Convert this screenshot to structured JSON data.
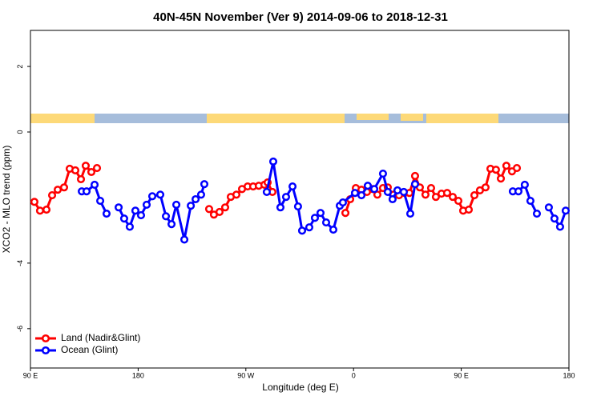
{
  "chart_data": {
    "type": "line",
    "title": "40N-45N November (Ver 9)   2014-09-06 to 2018-12-31",
    "x_label": "Longitude (deg E)",
    "y_label": "XCO2 - MLO trend (ppm)",
    "xlim": [
      90,
      540
    ],
    "ylim": [
      -7.2,
      3.1
    ],
    "xticks": [
      {
        "value": 90,
        "label": "90 E"
      },
      {
        "value": 180,
        "label": "180"
      },
      {
        "value": 270,
        "label": "90 W"
      },
      {
        "value": 360,
        "label": "0"
      },
      {
        "value": 450,
        "label": "90 E"
      },
      {
        "value": 540,
        "label": "180"
      }
    ],
    "yticks": [
      -6,
      -4,
      0,
      2
    ],
    "legend": "bottom-left",
    "series": [
      {
        "name": "Land (Nadir&Glint)",
        "color": "#ff0000",
        "x": [
          93.3,
          98.0,
          103.4,
          108.1,
          112.8,
          118.1,
          122.8,
          127.5,
          132.2,
          136.2,
          140.9,
          145.6,
          175.0,
          239.3,
          243.3,
          248.0,
          252.7,
          257.4,
          262.1,
          266.8,
          271.5,
          276.1,
          280.8,
          285.5,
          288.2,
          292.2,
          322.4,
          353.2,
          357.2,
          361.9,
          366.6,
          371.2,
          375.9,
          379.9,
          384.6,
          388.6,
          393.3,
          398.0,
          402.7,
          406.7,
          411.4,
          415.4,
          420.1,
          424.8,
          428.8,
          433.5,
          438.2,
          442.9,
          447.6,
          451.6,
          456.3,
          461.0,
          465.6,
          470.3,
          474.4,
          479.0,
          483.1,
          487.7,
          492.4,
          496.5
        ],
        "values": [
          -2.13,
          -2.4,
          -2.37,
          -1.93,
          -1.76,
          -1.69,
          -1.12,
          -1.17,
          -1.44,
          -1.03,
          -1.22,
          -1.1,
          null,
          -2.35,
          -2.52,
          -2.44,
          -2.3,
          -1.98,
          -1.91,
          -1.74,
          -1.66,
          -1.66,
          -1.64,
          -1.61,
          -1.54,
          -1.83,
          null,
          -2.47,
          -2.05,
          -1.71,
          -1.76,
          -1.83,
          -1.74,
          -1.91,
          -1.71,
          -1.69,
          -1.91,
          -1.93,
          -1.86,
          -1.86,
          -1.34,
          -1.69,
          -1.91,
          -1.71,
          -1.98,
          -1.88,
          -1.86,
          -1.98,
          -2.1,
          -2.4,
          -2.37,
          -1.93,
          -1.78,
          -1.69,
          -1.12,
          -1.15,
          -1.42,
          -1.03,
          -1.2,
          -1.1
        ]
      },
      {
        "name": "Ocean (Glint)",
        "color": "#0000ff",
        "x": [
          132.9,
          136.9,
          143.6,
          148.3,
          153.6,
          158.3,
          163.7,
          168.3,
          173.0,
          177.7,
          182.4,
          187.1,
          191.8,
          198.5,
          203.2,
          207.9,
          211.9,
          218.6,
          224.0,
          228.0,
          232.6,
          235.3,
          261.4,
          287.5,
          292.9,
          298.9,
          303.6,
          309.0,
          313.6,
          317.0,
          323.0,
          327.7,
          332.4,
          337.1,
          343.1,
          348.5,
          351.1,
          361.2,
          366.6,
          371.9,
          377.3,
          384.6,
          388.6,
          392.6,
          396.7,
          402.0,
          407.4,
          411.4,
          452.3,
          493.1,
          497.8,
          503.1,
          507.8,
          513.2,
          517.9,
          523.2,
          527.9,
          532.6,
          537.3
        ],
        "values": [
          -1.81,
          -1.81,
          -1.61,
          -2.1,
          -2.49,
          null,
          -2.3,
          -2.64,
          -2.89,
          -2.4,
          -2.54,
          -2.22,
          -1.96,
          -1.91,
          -2.57,
          -2.81,
          -2.22,
          -3.28,
          -2.25,
          -2.05,
          -1.91,
          -1.59,
          null,
          -1.83,
          -0.9,
          -2.3,
          -1.98,
          -1.66,
          -2.27,
          -3.01,
          -2.91,
          -2.62,
          -2.47,
          -2.76,
          -2.98,
          -2.25,
          -2.15,
          -1.86,
          -1.93,
          -1.64,
          -1.74,
          -1.27,
          -1.83,
          -2.05,
          -1.78,
          -1.83,
          -2.49,
          -1.59,
          null,
          -1.81,
          -1.81,
          -1.61,
          -2.1,
          -2.49,
          null,
          -2.3,
          -2.64,
          -2.89,
          -2.4
        ]
      }
    ]
  }
}
